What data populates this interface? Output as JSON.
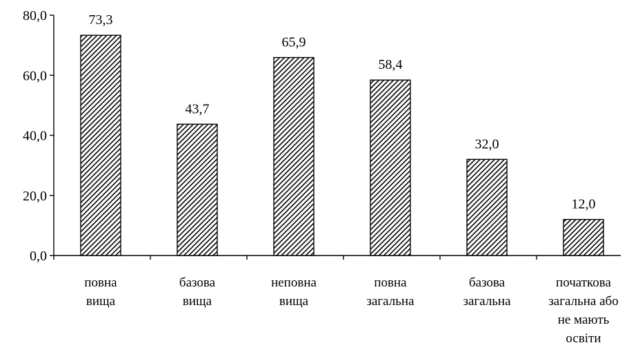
{
  "chart_data": {
    "type": "bar",
    "title": "",
    "xlabel": "",
    "ylabel": "",
    "categories": [
      [
        "повна",
        "вища"
      ],
      [
        "базова",
        "вища"
      ],
      [
        "неповна",
        "вища"
      ],
      [
        "повна",
        "загальна"
      ],
      [
        "базова",
        "загальна"
      ],
      [
        "початкова",
        "загальна або",
        "не мають",
        "освіти"
      ]
    ],
    "values": [
      73.3,
      43.7,
      65.9,
      58.4,
      32.0,
      12.0
    ],
    "value_labels": [
      "73,3",
      "43,7",
      "65,9",
      "58,4",
      "32,0",
      "12,0"
    ],
    "ylim": [
      0,
      80
    ],
    "yticks": [
      0,
      20,
      40,
      60,
      80
    ],
    "ytick_labels": [
      "0,0",
      "20,0",
      "40,0",
      "60,0",
      "80,0"
    ],
    "grid": false,
    "bar_fill": "diagonal-hatch",
    "colors": {
      "bar_stroke": "#000000",
      "hatch": "#000000",
      "background": "#ffffff"
    }
  }
}
